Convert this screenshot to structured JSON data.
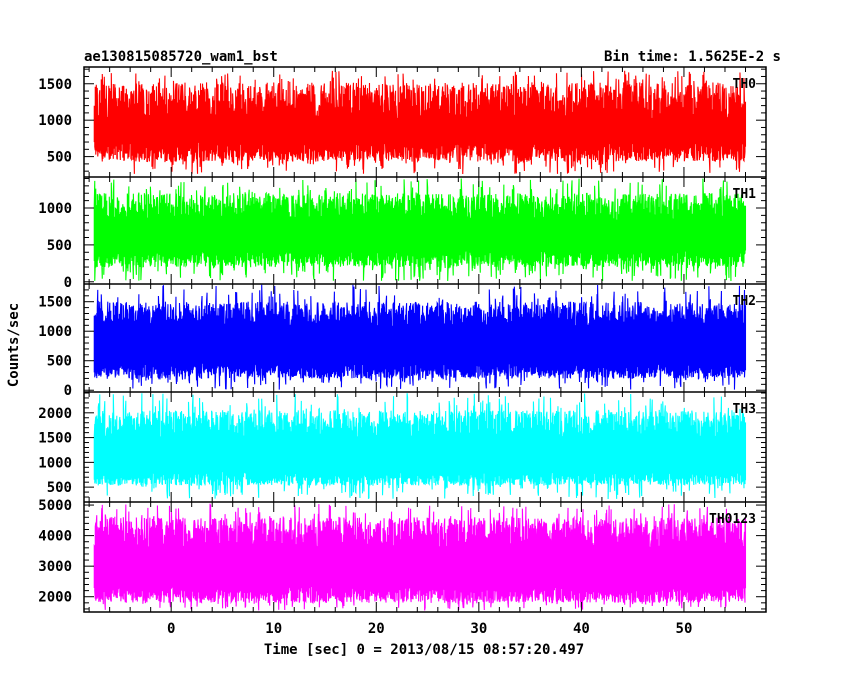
{
  "chart_data": {
    "type": "line",
    "title": "ae130815085720_wam1_bst",
    "subtitle": "Bin time: 1.5625E-2 s",
    "xlabel": "Time [sec] 0 = 2013/08/15 08:57:20.497",
    "ylabel": "Counts/sec",
    "xlim": [
      -8.5,
      58
    ],
    "x_ticks": [
      0,
      10,
      20,
      30,
      40,
      50
    ],
    "x_tick_labels": [
      "0",
      "10",
      "20",
      "30",
      "40",
      "50"
    ],
    "data_range": [
      -7.5,
      56
    ],
    "grid": false,
    "panels": [
      {
        "name": "TH0",
        "color": "#ff0000",
        "ylim": [
          220,
          1730
        ],
        "yticks": [
          500,
          1000,
          1500
        ],
        "ytick_labels": [
          "500",
          "1000",
          "1500"
        ],
        "low_range": [
          260,
          560
        ],
        "base_range": [
          430,
          700
        ],
        "high_range": [
          1000,
          1520
        ],
        "spike_max": 1680
      },
      {
        "name": "TH1",
        "color": "#00ff00",
        "ylim": [
          -30,
          1420
        ],
        "yticks": [
          0,
          500,
          1000
        ],
        "ytick_labels": [
          "0",
          "500",
          "1000"
        ],
        "low_range": [
          10,
          280
        ],
        "base_range": [
          200,
          430
        ],
        "high_range": [
          830,
          1200
        ],
        "spike_max": 1400
      },
      {
        "name": "TH2",
        "color": "#0000ff",
        "ylim": [
          -30,
          1800
        ],
        "yticks": [
          0,
          500,
          1000,
          1500
        ],
        "ytick_labels": [
          "0",
          "500",
          "1000",
          "1500"
        ],
        "low_range": [
          10,
          320
        ],
        "base_range": [
          200,
          470
        ],
        "high_range": [
          1050,
          1500
        ],
        "spike_max": 1790
      },
      {
        "name": "TH3",
        "color": "#00ffff",
        "ylim": [
          200,
          2420
        ],
        "yticks": [
          500,
          1000,
          1500,
          2000
        ],
        "ytick_labels": [
          "500",
          "1000",
          "1500",
          "2000"
        ],
        "low_range": [
          260,
          680
        ],
        "base_range": [
          530,
          820
        ],
        "high_range": [
          1500,
          2050
        ],
        "spike_max": 2400
      },
      {
        "name": "TH0123",
        "color": "#ff00ff",
        "ylim": [
          1500,
          5100
        ],
        "yticks": [
          2000,
          3000,
          4000,
          5000
        ],
        "ytick_labels": [
          "2000",
          "3000",
          "4000",
          "5000"
        ],
        "low_range": [
          1550,
          2050
        ],
        "base_range": [
          1800,
          2350
        ],
        "high_range": [
          3600,
          4600
        ],
        "spike_max": 5050
      }
    ]
  }
}
